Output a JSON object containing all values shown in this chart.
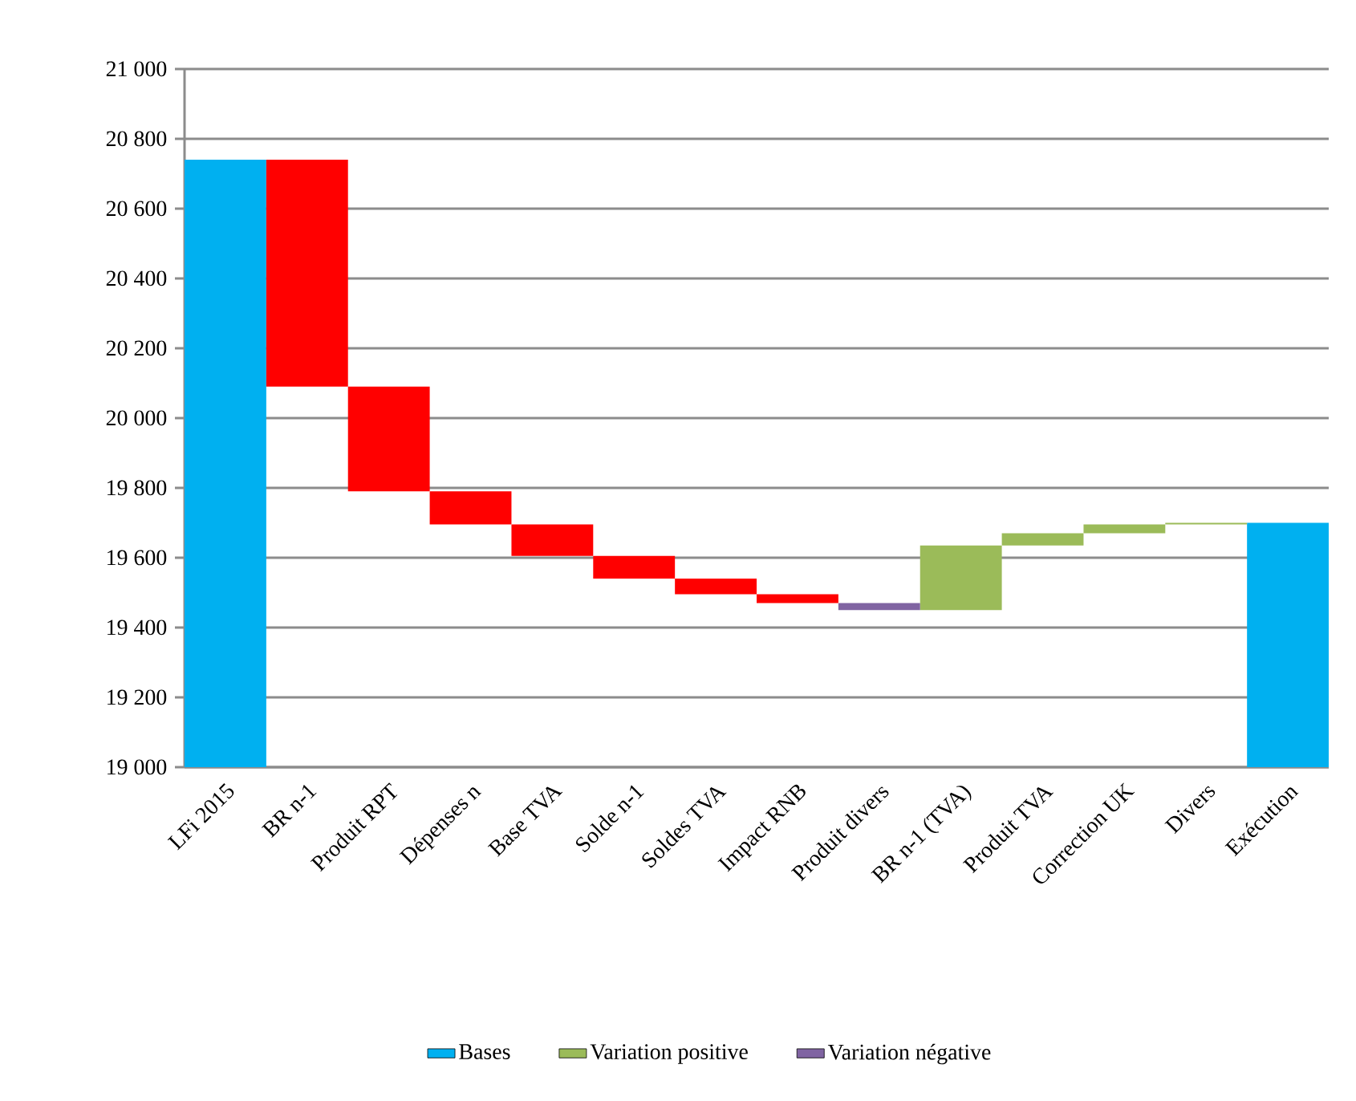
{
  "chart_data": {
    "type": "bar",
    "categories": [
      "LFi 2015",
      "BR n-1",
      "Produit RPT",
      "Dépenses n",
      "Base TVA",
      "Solde n-1",
      "Soldes TVA",
      "Impact RNB",
      "Produit divers",
      "BR n-1 (TVA)",
      "Produit TVA",
      "Correction UK",
      "Divers",
      "Exécution"
    ],
    "series": [
      {
        "name": "Bases",
        "color": "#00b0f0",
        "values": [
          20740,
          null,
          null,
          null,
          null,
          null,
          null,
          null,
          null,
          null,
          null,
          null,
          null,
          19700
        ]
      },
      {
        "name": "Variation positive",
        "color": "#9bbb59",
        "values": [
          null,
          null,
          null,
          null,
          null,
          null,
          null,
          null,
          null,
          185,
          35,
          25,
          5,
          null
        ],
        "base": [
          null,
          null,
          null,
          null,
          null,
          null,
          null,
          null,
          null,
          19450,
          19635,
          19670,
          19695,
          null
        ]
      },
      {
        "name": "Variation négative",
        "color": "#8064a2",
        "colors": [
          null,
          "#ff0000",
          "#ff0000",
          "#ff0000",
          "#ff0000",
          "#ff0000",
          "#ff0000",
          "#ff0000",
          "#8064a2",
          null,
          null,
          null,
          null,
          null
        ],
        "values": [
          null,
          -650,
          -300,
          -95,
          -90,
          -65,
          -45,
          -25,
          -20,
          null,
          null,
          null,
          null,
          null
        ],
        "base": [
          null,
          20740,
          20090,
          19790,
          19695,
          19605,
          19540,
          19495,
          19470,
          null,
          null,
          null,
          null,
          null
        ]
      }
    ],
    "ylim": [
      19000,
      21000
    ],
    "yticks": [
      {
        "value": 19000,
        "label": "19 000"
      },
      {
        "value": 19200,
        "label": "19 200"
      },
      {
        "value": 19400,
        "label": "19 400"
      },
      {
        "value": 19600,
        "label": "19 600"
      },
      {
        "value": 19800,
        "label": "19 800"
      },
      {
        "value": 20000,
        "label": "20 000"
      },
      {
        "value": 20200,
        "label": "20 200"
      },
      {
        "value": 20400,
        "label": "20 400"
      },
      {
        "value": 20600,
        "label": "20 600"
      },
      {
        "value": 20800,
        "label": "20 800"
      },
      {
        "value": 21000,
        "label": "21 000"
      }
    ],
    "grid": "y",
    "legend": "bottom"
  }
}
